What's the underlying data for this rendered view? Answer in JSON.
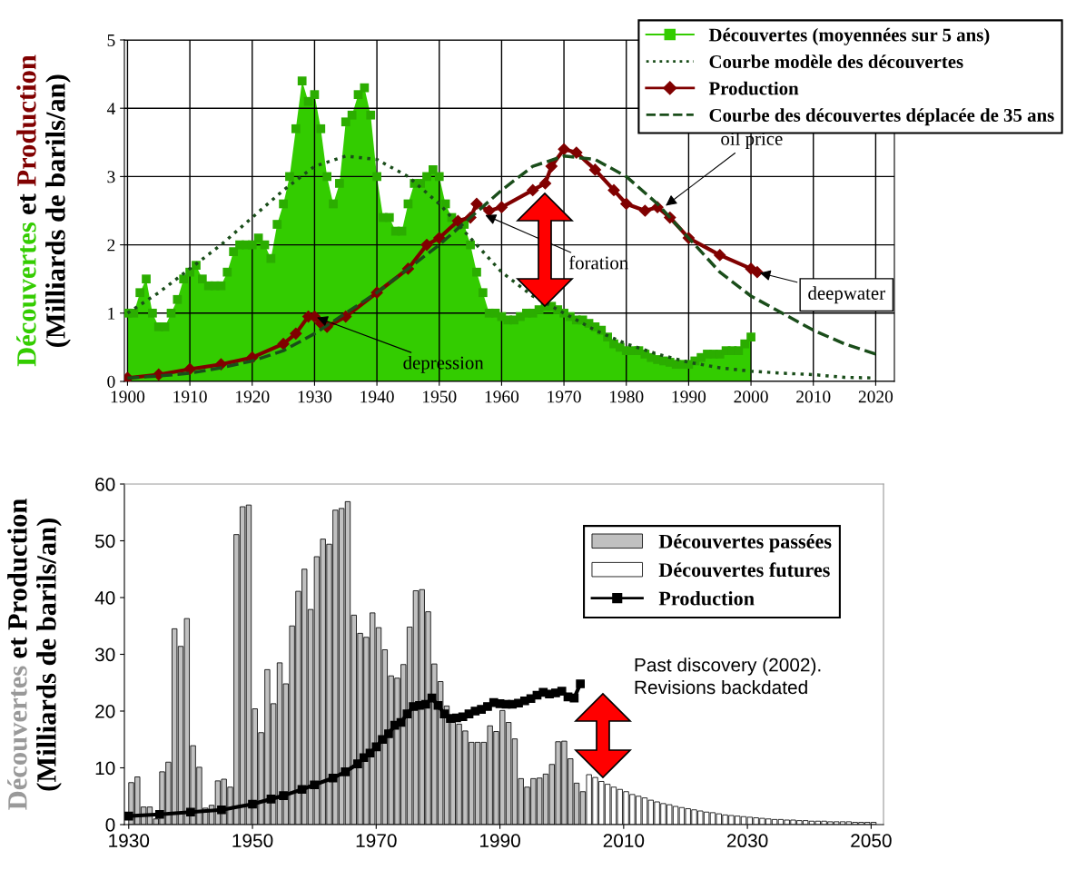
{
  "chart_data": [
    {
      "type": "line",
      "ylabel": "Découvertes et Production\n(Milliards de barils/an)",
      "xlim": [
        1899.5,
        2023
      ],
      "ylim": [
        0,
        5
      ],
      "xticks": [
        1900,
        1910,
        1920,
        1930,
        1940,
        1950,
        1960,
        1970,
        1980,
        1990,
        2000,
        2010,
        2020
      ],
      "yticks": [
        0,
        1,
        2,
        3,
        4,
        5
      ],
      "grid": true,
      "legend": "top right",
      "series": [
        {
          "name": "Découvertes (moyennées sur 5 ans)",
          "type": "area",
          "color": "#33cc00",
          "marker": "square",
          "line_style": "solid",
          "x": [
            1900,
            1901,
            1902,
            1903,
            1904,
            1905,
            1906,
            1907,
            1908,
            1909,
            1910,
            1911,
            1912,
            1913,
            1914,
            1915,
            1916,
            1917,
            1918,
            1919,
            1920,
            1921,
            1922,
            1923,
            1924,
            1925,
            1926,
            1927,
            1928,
            1929,
            1930,
            1931,
            1932,
            1933,
            1934,
            1935,
            1936,
            1937,
            1938,
            1939,
            1940,
            1941,
            1942,
            1943,
            1944,
            1945,
            1946,
            1947,
            1948,
            1949,
            1950,
            1951,
            1952,
            1953,
            1954,
            1955,
            1956,
            1957,
            1958,
            1959,
            1960,
            1961,
            1962,
            1963,
            1964,
            1965,
            1966,
            1967,
            1968,
            1969,
            1970,
            1971,
            1972,
            1973,
            1974,
            1975,
            1976,
            1977,
            1978,
            1979,
            1980,
            1981,
            1982,
            1983,
            1984,
            1985,
            1986,
            1987,
            1988,
            1989,
            1990,
            1991,
            1992,
            1993,
            1994,
            1995,
            1996,
            1997,
            1998,
            1999,
            2000
          ],
          "values": [
            1.0,
            1.0,
            1.3,
            1.5,
            1.0,
            0.8,
            0.8,
            1.0,
            1.2,
            1.5,
            1.6,
            1.7,
            1.5,
            1.4,
            1.4,
            1.4,
            1.6,
            1.9,
            2.0,
            2.0,
            2.0,
            2.1,
            2.0,
            1.8,
            2.3,
            2.6,
            3.0,
            3.7,
            4.4,
            4.1,
            4.2,
            3.7,
            3.0,
            2.6,
            2.9,
            3.8,
            3.9,
            4.2,
            4.3,
            3.9,
            3.0,
            2.4,
            2.4,
            2.2,
            2.2,
            2.6,
            2.9,
            2.9,
            3.0,
            3.1,
            3.0,
            2.6,
            2.4,
            2.3,
            2.3,
            2.0,
            1.6,
            1.3,
            1.0,
            1.0,
            0.95,
            0.9,
            0.9,
            0.95,
            1.0,
            1.0,
            1.05,
            1.1,
            1.1,
            1.05,
            1.0,
            0.95,
            0.9,
            0.9,
            0.85,
            0.8,
            0.75,
            0.65,
            0.55,
            0.5,
            0.45,
            0.45,
            0.45,
            0.4,
            0.35,
            0.32,
            0.3,
            0.28,
            0.25,
            0.25,
            0.25,
            0.3,
            0.35,
            0.4,
            0.4,
            0.4,
            0.45,
            0.45,
            0.45,
            0.55,
            0.65
          ]
        },
        {
          "name": "Courbe modèle des découvertes",
          "color": "#1a4d1a",
          "marker": "none",
          "line_style": "dotted",
          "x": [
            1900,
            1905,
            1910,
            1915,
            1920,
            1925,
            1930,
            1935,
            1940,
            1945,
            1950,
            1955,
            1960,
            1965,
            1970,
            1975,
            1980,
            1985,
            1990,
            1995,
            2000,
            2005,
            2010,
            2015,
            2020
          ],
          "values": [
            1.0,
            1.3,
            1.65,
            2.0,
            2.4,
            2.8,
            3.15,
            3.3,
            3.25,
            3.0,
            2.6,
            2.1,
            1.6,
            1.25,
            1.0,
            0.75,
            0.55,
            0.4,
            0.28,
            0.2,
            0.15,
            0.12,
            0.1,
            0.06,
            0.05
          ]
        },
        {
          "name": "Production",
          "color": "#800000",
          "marker": "diamond",
          "line_style": "solid",
          "x": [
            1900,
            1905,
            1910,
            1915,
            1920,
            1925,
            1927,
            1929,
            1930,
            1931,
            1932,
            1935,
            1940,
            1945,
            1948,
            1950,
            1953,
            1955,
            1956,
            1958,
            1960,
            1965,
            1967,
            1968,
            1970,
            1972,
            1975,
            1978,
            1980,
            1983,
            1985,
            1987,
            1990,
            1995,
            2000,
            2001
          ],
          "values": [
            0.05,
            0.1,
            0.18,
            0.25,
            0.35,
            0.55,
            0.7,
            0.95,
            0.95,
            0.85,
            0.8,
            0.95,
            1.3,
            1.65,
            2.0,
            2.1,
            2.35,
            2.4,
            2.6,
            2.5,
            2.55,
            2.8,
            2.9,
            3.15,
            3.4,
            3.35,
            3.1,
            2.8,
            2.6,
            2.5,
            2.55,
            2.4,
            2.1,
            1.85,
            1.65,
            1.6
          ]
        },
        {
          "name": "Courbe des découvertes déplacée de 35 ans",
          "color": "#1a4d1a",
          "marker": "none",
          "line_style": "dashed",
          "x": [
            1900,
            1905,
            1910,
            1915,
            1920,
            1925,
            1930,
            1935,
            1940,
            1945,
            1950,
            1955,
            1960,
            1965,
            1970,
            1975,
            1980,
            1985,
            1990,
            1995,
            2000,
            2005,
            2010,
            2015,
            2020
          ],
          "values": [
            0.05,
            0.08,
            0.12,
            0.2,
            0.3,
            0.45,
            0.7,
            1.0,
            1.3,
            1.65,
            2.0,
            2.4,
            2.8,
            3.15,
            3.3,
            3.25,
            3.0,
            2.6,
            2.1,
            1.6,
            1.25,
            1.0,
            0.75,
            0.55,
            0.4
          ]
        }
      ],
      "annotations": [
        {
          "text": "oil price",
          "x": 1986,
          "y": 2.55
        },
        {
          "text": "foration",
          "x": 1957,
          "y": 2.45
        },
        {
          "text": "depression",
          "x": 1930,
          "y": 0.95
        },
        {
          "text": "deepwater",
          "x": 2001,
          "y": 1.6
        }
      ]
    },
    {
      "type": "bar",
      "ylabel": "Découvertes et Production\n(Milliards de barils/an)",
      "xlim": [
        1929.3,
        2052
      ],
      "ylim": [
        0,
        60
      ],
      "xticks": [
        1930,
        1950,
        1970,
        1990,
        2010,
        2030,
        2050
      ],
      "yticks": [
        0,
        10,
        20,
        30,
        40,
        50,
        60
      ],
      "legend": "top right",
      "series": [
        {
          "name": "Découvertes passées",
          "color": "#c0c0c0",
          "x": [
            1930,
            1931,
            1932,
            1933,
            1934,
            1935,
            1936,
            1937,
            1938,
            1939,
            1940,
            1941,
            1942,
            1943,
            1944,
            1945,
            1946,
            1947,
            1948,
            1949,
            1950,
            1951,
            1952,
            1953,
            1954,
            1955,
            1956,
            1957,
            1958,
            1959,
            1960,
            1961,
            1962,
            1963,
            1964,
            1965,
            1966,
            1967,
            1968,
            1969,
            1970,
            1971,
            1972,
            1973,
            1974,
            1975,
            1976,
            1977,
            1978,
            1979,
            1980,
            1981,
            1982,
            1983,
            1984,
            1985,
            1986,
            1987,
            1988,
            1989,
            1990,
            1991,
            1992,
            1993,
            1994,
            1995,
            1996,
            1997,
            1998,
            1999,
            2000,
            2001,
            2002,
            2003
          ],
          "values": [
            7.4,
            8.4,
            3.1,
            3.1,
            1.0,
            9.3,
            11,
            34.5,
            31.4,
            36.3,
            13.9,
            10.1,
            2.9,
            3.4,
            7.7,
            8,
            6.6,
            51.1,
            56,
            56.3,
            20.4,
            16.2,
            27.3,
            21.3,
            28.5,
            24.8,
            35,
            41.1,
            45,
            37.9,
            47.2,
            50.3,
            49.4,
            55.4,
            55.7,
            56.9,
            36.9,
            33.7,
            33,
            37.3,
            34.7,
            30.8,
            26.2,
            25.8,
            28.2,
            34.8,
            41.2,
            41.4,
            37.5,
            28.3,
            25.2,
            20.9,
            18.1,
            17.7,
            16.5,
            14.5,
            14.5,
            14.5,
            17.4,
            16.4,
            20.1,
            18,
            15.1,
            8.1,
            6.6,
            8.1,
            8.2,
            8.9,
            10.6,
            14.6,
            14.7,
            11.6,
            7.3,
            5.8
          ]
        },
        {
          "name": "Découvertes futures",
          "color": "#ffffff",
          "x": [
            2004,
            2005,
            2006,
            2007,
            2008,
            2009,
            2010,
            2011,
            2012,
            2013,
            2014,
            2015,
            2016,
            2017,
            2018,
            2019,
            2020,
            2021,
            2022,
            2023,
            2024,
            2025,
            2026,
            2027,
            2028,
            2029,
            2030,
            2031,
            2032,
            2033,
            2034,
            2035,
            2036,
            2037,
            2038,
            2039,
            2040,
            2041,
            2042,
            2043,
            2044,
            2045,
            2046,
            2047,
            2048,
            2049,
            2050
          ],
          "values": [
            8.8,
            8.3,
            7.6,
            7.1,
            6.6,
            6.2,
            5.8,
            5.3,
            5.0,
            4.7,
            4.3,
            4.0,
            3.7,
            3.5,
            3.2,
            3.0,
            2.8,
            2.6,
            2.4,
            2.2,
            2.1,
            1.9,
            1.7,
            1.6,
            1.5,
            1.4,
            1.3,
            1.2,
            1.1,
            1.0,
            0.9,
            0.9,
            0.8,
            0.8,
            0.7,
            0.7,
            0.6,
            0.6,
            0.6,
            0.5,
            0.5,
            0.5,
            0.5,
            0.4,
            0.4,
            0.4,
            0.4
          ]
        },
        {
          "name": "Production",
          "type": "line",
          "color": "#000000",
          "marker": "square",
          "line_style": "solid",
          "x": [
            1930,
            1935,
            1940,
            1945,
            1950,
            1953,
            1955,
            1958,
            1960,
            1963,
            1965,
            1967,
            1968,
            1969,
            1970,
            1971,
            1972,
            1973,
            1974,
            1975,
            1976,
            1977,
            1978,
            1979,
            1980,
            1981,
            1982,
            1983,
            1984,
            1985,
            1986,
            1987,
            1988,
            1989,
            1990,
            1991,
            1992,
            1993,
            1994,
            1995,
            1996,
            1997,
            1998,
            1999,
            2000,
            2001,
            2002,
            2003
          ],
          "values": [
            1.5,
            1.8,
            2.2,
            2.6,
            3.6,
            4.5,
            5.1,
            6.2,
            7.0,
            8.2,
            9.3,
            10.7,
            11.8,
            12.6,
            13.7,
            15.0,
            16.0,
            17.5,
            18.0,
            19.5,
            20.8,
            21.0,
            21.2,
            22.3,
            21.0,
            19.5,
            18.7,
            18.8,
            19.0,
            19.5,
            20.0,
            20.3,
            20.8,
            21.5,
            21.3,
            21.2,
            21.2,
            21.4,
            21.8,
            22.2,
            22.8,
            23.3,
            23.0,
            23.2,
            23.5,
            22.5,
            22.3,
            24.8
          ]
        }
      ],
      "annotations": [
        "Past discovery (2002).\nRevisions backdated"
      ]
    }
  ]
}
